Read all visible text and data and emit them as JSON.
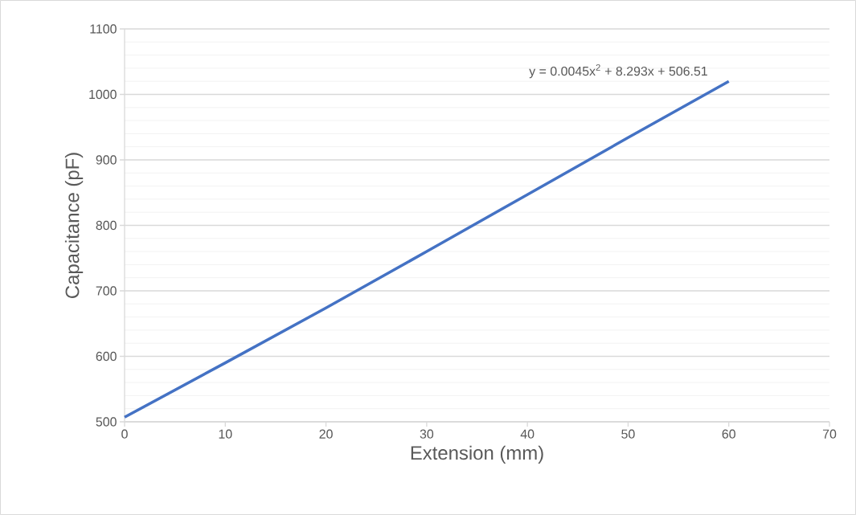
{
  "chart_data": {
    "type": "line",
    "xlabel": "Extension (mm)",
    "ylabel": "Capacitance (pF)",
    "x": [
      0,
      10,
      20,
      30,
      40,
      50,
      60
    ],
    "series": [
      {
        "color": "#4472c4",
        "values": [
          507,
          590,
          674,
          760,
          847,
          934,
          1020
        ]
      }
    ],
    "xlim": [
      0,
      70
    ],
    "xticks": [
      0,
      10,
      20,
      30,
      40,
      50,
      60,
      70
    ],
    "ylim": [
      500,
      1100
    ],
    "yticks": [
      500,
      600,
      700,
      800,
      900,
      1000,
      1100
    ],
    "grid": "y",
    "marker": "none",
    "line_style": "solid",
    "annotations": [
      "y = 0.0045x$^{2}$ + 8.293x + 506.51"
    ]
  }
}
